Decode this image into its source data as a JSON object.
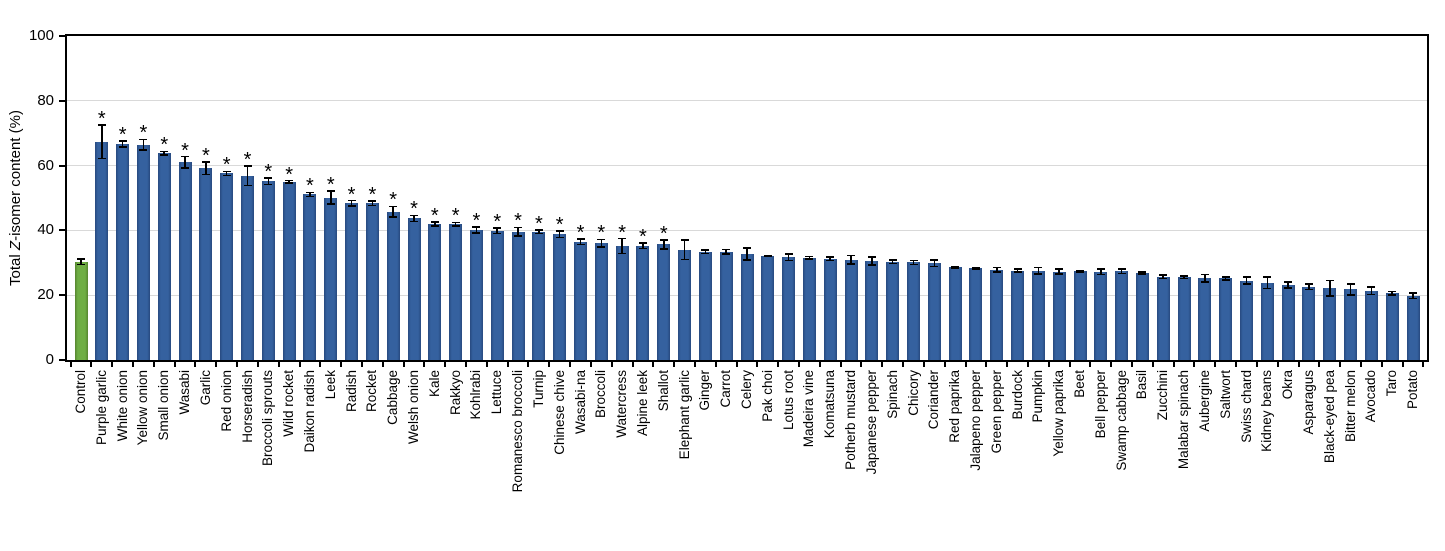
{
  "figure": {
    "background": "#ffffff",
    "axis_color": "#000000",
    "gridline_color": "#d9d9d9"
  },
  "chart_data": {
    "type": "bar",
    "title": "",
    "xlabel": "",
    "ylabel": "Total Z-isomer content (%)",
    "ylabel_prefix": "Total ",
    "ylabel_italic": "Z",
    "ylabel_suffix": "-isomer content (%)",
    "ylim": [
      0,
      100
    ],
    "yticks": [
      0,
      20,
      40,
      60,
      80,
      100
    ],
    "grid": "horizontal gridlines at 20/40/60/80, light gray",
    "legend_position": "none",
    "significance_marker": "*",
    "bar_colors": {
      "control": "#6fae44",
      "default": "#35619f"
    },
    "error_bar_color": "#000000",
    "categories": [
      "Control",
      "Purple garlic",
      "White onion",
      "Yellow onion",
      "Small onion",
      "Wasabi",
      "Garlic",
      "Red onion",
      "Horseradish",
      "Broccoli sprouts",
      "Wild rocket",
      "Daikon radish",
      "Leek",
      "Radish",
      "Rocket",
      "Cabbage",
      "Welsh onion",
      "Kale",
      "Rakkyo",
      "Kohlrabi",
      "Lettuce",
      "Romanesco broccoli",
      "Turnip",
      "Chinese chive",
      "Wasabi-na",
      "Broccoli",
      "Watercress",
      "Alpine leek",
      "Shallot",
      "Elephant garlic",
      "Ginger",
      "Carrot",
      "Celery",
      "Pak choi",
      "Lotus root",
      "Madeira vine",
      "Komatsuna",
      "Potherb mustard",
      "Japanese pepper",
      "Spinach",
      "Chicory",
      "Coriander",
      "Red paprika",
      "Jalapeno pepper",
      "Green pepper",
      "Burdock",
      "Pumpkin",
      "Yellow paprika",
      "Beet",
      "Bell pepper",
      "Swamp cabbage",
      "Basil",
      "Zucchini",
      "Malabar spinach",
      "Aubergine",
      "Saltwort",
      "Swiss chard",
      "Kidney beans",
      "Okra",
      "Asparagus",
      "Black-eyed pea",
      "Bitter melon",
      "Avocado",
      "Taro",
      "Potato"
    ],
    "values": [
      30.3,
      67.4,
      66.7,
      66.5,
      63.8,
      61.0,
      59.2,
      57.6,
      56.9,
      55.2,
      55.0,
      51.1,
      50.1,
      48.4,
      48.4,
      45.8,
      43.7,
      42.0,
      41.9,
      40.1,
      39.9,
      39.6,
      39.6,
      38.8,
      36.5,
      36.0,
      35.2,
      35.3,
      35.7,
      34.0,
      33.4,
      33.4,
      32.7,
      32.1,
      31.7,
      31.5,
      31.2,
      30.9,
      30.6,
      30.3,
      30.1,
      29.8,
      28.6,
      28.3,
      27.8,
      27.6,
      27.5,
      27.3,
      27.4,
      27.2,
      27.4,
      26.9,
      25.7,
      25.5,
      25.2,
      25.2,
      24.5,
      23.9,
      23.1,
      22.6,
      22.1,
      21.8,
      21.4,
      20.6,
      19.8
    ],
    "errors": [
      0.8,
      5.2,
      0.9,
      1.6,
      0.6,
      1.8,
      2.0,
      0.6,
      3.0,
      1.0,
      0.4,
      0.6,
      2.0,
      0.8,
      0.7,
      1.6,
      0.9,
      0.6,
      0.6,
      0.9,
      0.8,
      1.3,
      0.5,
      1.0,
      0.9,
      1.2,
      2.3,
      0.9,
      1.4,
      3.0,
      0.5,
      0.7,
      1.8,
      0.2,
      1.0,
      0.4,
      0.5,
      1.3,
      1.2,
      0.5,
      0.6,
      1.0,
      0.2,
      0.2,
      0.7,
      0.5,
      1.0,
      0.8,
      0.2,
      0.8,
      0.7,
      0.3,
      0.5,
      0.4,
      1.2,
      0.5,
      1.1,
      1.8,
      0.9,
      0.8,
      2.4,
      1.7,
      1.2,
      0.5,
      0.8
    ],
    "significant": [
      false,
      true,
      true,
      true,
      true,
      true,
      true,
      true,
      true,
      true,
      true,
      true,
      true,
      true,
      true,
      true,
      true,
      true,
      true,
      true,
      true,
      true,
      true,
      true,
      true,
      true,
      true,
      true,
      true,
      false,
      false,
      false,
      false,
      false,
      false,
      false,
      false,
      false,
      false,
      false,
      false,
      false,
      false,
      false,
      false,
      false,
      false,
      false,
      false,
      false,
      false,
      false,
      false,
      false,
      false,
      false,
      false,
      false,
      false,
      false,
      false,
      false,
      false,
      false,
      false
    ]
  }
}
